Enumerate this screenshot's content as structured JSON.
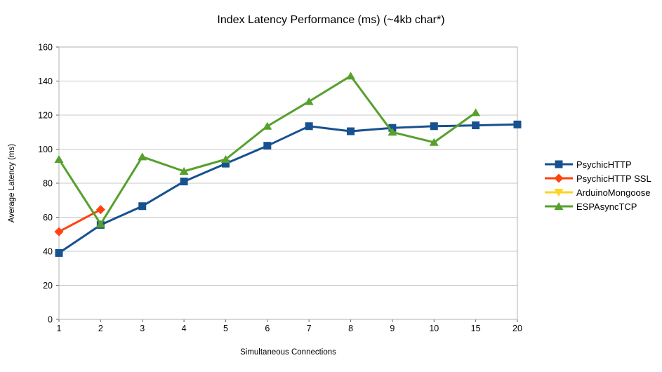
{
  "chart_data": {
    "type": "line",
    "title": "Index Latency Performance (ms) (~4kb char*)",
    "xlabel": "Simultaneous Connections",
    "ylabel": "Average Latency (ms)",
    "categories": [
      "1",
      "2",
      "3",
      "4",
      "5",
      "6",
      "7",
      "8",
      "9",
      "10",
      "15",
      "20"
    ],
    "ylim": [
      0,
      160
    ],
    "ytick_interval": 20,
    "y_tick_labels": [
      "0",
      "20",
      "40",
      "60",
      "80",
      "100",
      "120",
      "140",
      "160"
    ],
    "grid": "horizontal",
    "legend_position": "right",
    "colors": {
      "grid": "#c9c9c9",
      "border": "#b0b0b0",
      "text": "#000000"
    },
    "series": [
      {
        "name": "PsychicHTTP",
        "color": "#17518F",
        "marker": "square",
        "values": [
          39,
          55.5,
          66.5,
          81,
          91.5,
          102,
          113.5,
          110.5,
          112.5,
          113.5,
          114,
          114.5
        ]
      },
      {
        "name": "PsychicHTTP SSL",
        "color": "#FF420E",
        "marker": "diamond",
        "values": [
          51.5,
          64.5,
          null,
          null,
          null,
          null,
          null,
          null,
          null,
          null,
          null,
          null
        ]
      },
      {
        "name": "ArduinoMongoose",
        "color": "#FFD320",
        "marker": "triangle-down",
        "values": [
          null,
          null,
          null,
          null,
          null,
          null,
          null,
          null,
          null,
          null,
          null,
          null
        ]
      },
      {
        "name": "ESPAsyncTCP",
        "color": "#57A02D",
        "marker": "triangle-up",
        "values": [
          94,
          56,
          95.5,
          87,
          94,
          113.5,
          128,
          143,
          110,
          104,
          121.5,
          null
        ]
      }
    ]
  }
}
